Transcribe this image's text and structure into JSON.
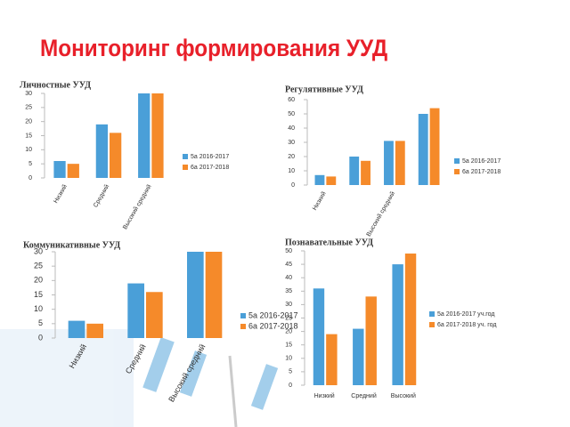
{
  "title": "Мониторинг формирования УУД",
  "chart_data": [
    {
      "type": "bar",
      "title": "Личностные УУД",
      "categories": [
        "Низкий",
        "Средний",
        "Высокий средний"
      ],
      "series": [
        {
          "name": "5а 2016-2017",
          "color": "#4a9fd8",
          "values": [
            6,
            19,
            30
          ]
        },
        {
          "name": "6а 2017-2018",
          "color": "#f58a2a",
          "values": [
            5,
            16,
            30
          ]
        }
      ],
      "ylim": [
        0,
        30
      ],
      "yticks": [
        0,
        5,
        10,
        15,
        20,
        25,
        30
      ]
    },
    {
      "type": "bar",
      "title": "Регулятивные УУД",
      "categories": [
        "Низкий",
        null,
        "Высокий средний",
        null
      ],
      "series": [
        {
          "name": "5а 2016-2017",
          "color": "#4a9fd8",
          "values": [
            7,
            20,
            31,
            50
          ]
        },
        {
          "name": "6а 2017-2018",
          "color": "#f58a2a",
          "values": [
            6,
            17,
            31,
            54
          ]
        }
      ],
      "ylim": [
        0,
        60
      ],
      "yticks": [
        0,
        10,
        20,
        30,
        40,
        50,
        60
      ]
    },
    {
      "type": "bar",
      "title": "Коммуникативные УУД",
      "categories": [
        "Низкий",
        "Средний",
        "Высокий средний"
      ],
      "series": [
        {
          "name": "5а 2016-2017",
          "color": "#4a9fd8",
          "values": [
            6,
            19,
            30
          ]
        },
        {
          "name": "6а 2017-2018",
          "color": "#f58a2a",
          "values": [
            5,
            16,
            30
          ]
        }
      ],
      "ylim": [
        0,
        30
      ],
      "yticks": [
        0,
        5,
        10,
        15,
        20,
        25,
        30
      ]
    },
    {
      "type": "bar",
      "title": "Познавательные УУД",
      "categories": [
        "Низкий",
        "Средний",
        "Высокий"
      ],
      "series": [
        {
          "name": "5а 2016-2017 уч.год",
          "color": "#4a9fd8",
          "values": [
            36,
            21,
            45
          ]
        },
        {
          "name": "6а 2017-2018 уч. год",
          "color": "#f58a2a",
          "values": [
            19,
            33,
            49
          ]
        }
      ],
      "ylim": [
        0,
        50
      ],
      "yticks": [
        0,
        5,
        10,
        15,
        20,
        25,
        30,
        35,
        40,
        45,
        50
      ]
    }
  ]
}
